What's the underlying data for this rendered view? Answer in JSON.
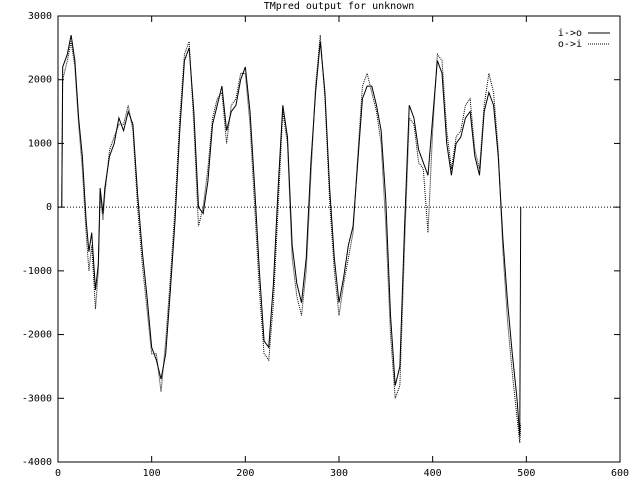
{
  "chart_data": {
    "type": "line",
    "title": "TMpred output for unknown",
    "x": [
      4,
      5,
      10,
      14,
      18,
      22,
      26,
      30,
      33,
      36,
      40,
      43,
      45,
      48,
      50,
      55,
      60,
      65,
      70,
      75,
      80,
      85,
      90,
      95,
      100,
      105,
      110,
      115,
      120,
      125,
      130,
      135,
      140,
      145,
      150,
      155,
      160,
      165,
      170,
      175,
      180,
      185,
      190,
      195,
      200,
      205,
      210,
      215,
      220,
      225,
      230,
      235,
      240,
      245,
      250,
      255,
      260,
      265,
      270,
      275,
      280,
      285,
      290,
      295,
      300,
      305,
      310,
      315,
      320,
      325,
      330,
      335,
      340,
      345,
      350,
      355,
      360,
      365,
      370,
      375,
      380,
      385,
      390,
      395,
      400,
      405,
      410,
      415,
      420,
      425,
      430,
      435,
      440,
      445,
      450,
      455,
      460,
      465,
      470,
      475,
      480,
      485,
      490,
      493,
      494
    ],
    "series": [
      {
        "name": "i->o",
        "color": "#000000",
        "style": "solid",
        "values": [
          0,
          2200,
          2400,
          2700,
          2300,
          1400,
          800,
          -200,
          -700,
          -400,
          -1300,
          -900,
          300,
          -100,
          300,
          800,
          1000,
          1400,
          1200,
          1500,
          1300,
          200,
          -700,
          -1400,
          -2200,
          -2400,
          -2700,
          -2300,
          -1300,
          -200,
          1200,
          2300,
          2500,
          1500,
          0,
          -100,
          400,
          1300,
          1600,
          1900,
          1200,
          1500,
          1600,
          2000,
          2200,
          1500,
          300,
          -1000,
          -2100,
          -2200,
          -1200,
          300,
          1600,
          1100,
          -600,
          -1200,
          -1500,
          -800,
          700,
          1800,
          2600,
          1800,
          300,
          -800,
          -1500,
          -1100,
          -600,
          -300,
          700,
          1700,
          1900,
          1900,
          1600,
          1200,
          100,
          -1700,
          -2800,
          -2500,
          -300,
          1600,
          1400,
          900,
          700,
          500,
          1400,
          2300,
          2100,
          1000,
          500,
          1000,
          1100,
          1400,
          1500,
          800,
          500,
          1500,
          1800,
          1600,
          800,
          -500,
          -1500,
          -2300,
          -3000,
          -3600,
          0
        ]
      },
      {
        "name": "o->i",
        "color": "#000000",
        "style": "dotted",
        "values": [
          0,
          2000,
          2300,
          2600,
          2200,
          1300,
          600,
          -400,
          -1000,
          -600,
          -1600,
          -1000,
          200,
          -200,
          200,
          900,
          1100,
          1300,
          1300,
          1600,
          1200,
          0,
          -900,
          -1600,
          -2300,
          -2300,
          -2900,
          -2100,
          -1100,
          0,
          1400,
          2400,
          2600,
          1300,
          -300,
          0,
          600,
          1400,
          1700,
          1800,
          1000,
          1600,
          1700,
          2100,
          2100,
          1300,
          0,
          -1300,
          -2300,
          -2400,
          -1500,
          0,
          1500,
          1000,
          -800,
          -1400,
          -1700,
          -1000,
          500,
          1900,
          2700,
          1700,
          100,
          -1000,
          -1700,
          -1200,
          -800,
          -400,
          800,
          1900,
          2100,
          1800,
          1500,
          1000,
          -300,
          -2000,
          -3000,
          -2800,
          -600,
          1400,
          1300,
          700,
          600,
          -400,
          1200,
          2400,
          2300,
          1200,
          600,
          1100,
          1200,
          1600,
          1700,
          900,
          600,
          1600,
          2100,
          1800,
          900,
          -700,
          -1800,
          -2600,
          -3300,
          -3700,
          -3400
        ]
      }
    ],
    "xlim": [
      0,
      600
    ],
    "xticks": [
      0,
      100,
      200,
      300,
      400,
      500,
      600
    ],
    "ylim": [
      -4000,
      3000
    ],
    "yticks": [
      -4000,
      -3000,
      -2000,
      -1000,
      0,
      1000,
      2000,
      3000
    ],
    "zero_line": true,
    "legend": "upper right"
  }
}
